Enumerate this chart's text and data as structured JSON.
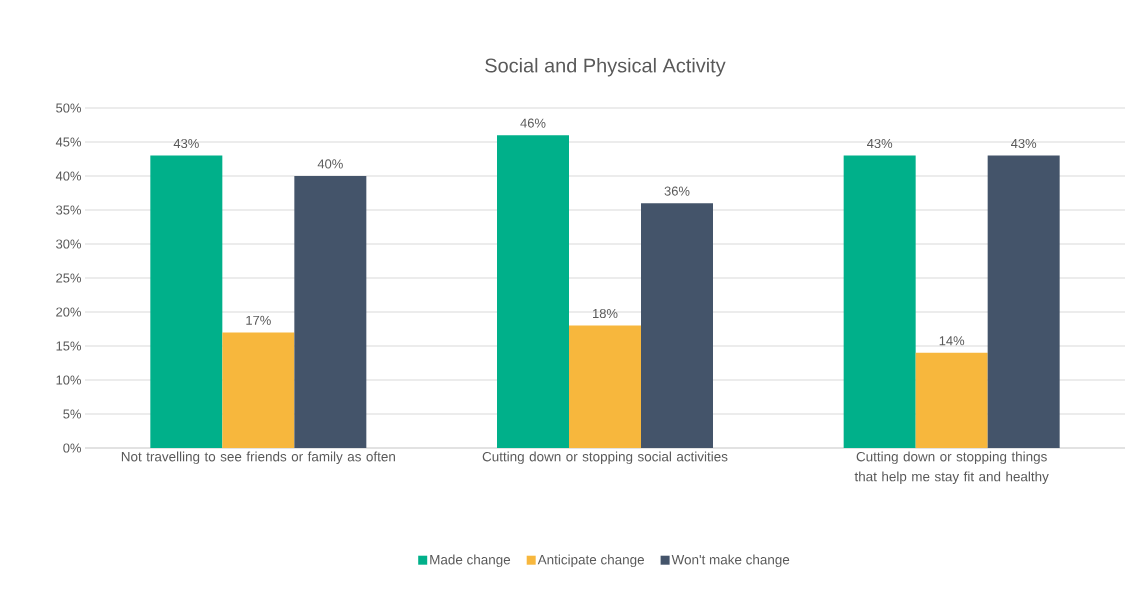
{
  "chart_data": {
    "type": "bar",
    "title": "Social and Physical Activity",
    "categories": [
      "Not travelling to see friends or family as often",
      "Cutting down or stopping social activities",
      "Cutting down or stopping things that help me stay fit and healthy"
    ],
    "series": [
      {
        "name": "Made change",
        "color": "#00b08a",
        "values": [
          43,
          46,
          43
        ],
        "value_labels": [
          "43%",
          "46%",
          "43%"
        ]
      },
      {
        "name": "Anticipate change",
        "color": "#f7b73d",
        "values": [
          17,
          18,
          14
        ],
        "value_labels": [
          "17%",
          "18%",
          "14%"
        ]
      },
      {
        "name": "Won't make change",
        "color": "#44546a",
        "values": [
          40,
          36,
          43
        ],
        "value_labels": [
          "40%",
          "36%",
          "43%"
        ]
      }
    ],
    "ylim": [
      0,
      50
    ],
    "yticks": [
      {
        "value": 0,
        "label": "0%"
      },
      {
        "value": 5,
        "label": "5%"
      },
      {
        "value": 10,
        "label": "10%"
      },
      {
        "value": 15,
        "label": "15%"
      },
      {
        "value": 20,
        "label": "20%"
      },
      {
        "value": 25,
        "label": "25%"
      },
      {
        "value": 30,
        "label": "30%"
      },
      {
        "value": 35,
        "label": "35%"
      },
      {
        "value": 40,
        "label": "40%"
      },
      {
        "value": 45,
        "label": "45%"
      },
      {
        "value": 50,
        "label": "50%"
      }
    ],
    "grid": "y",
    "legend": "bottom"
  }
}
